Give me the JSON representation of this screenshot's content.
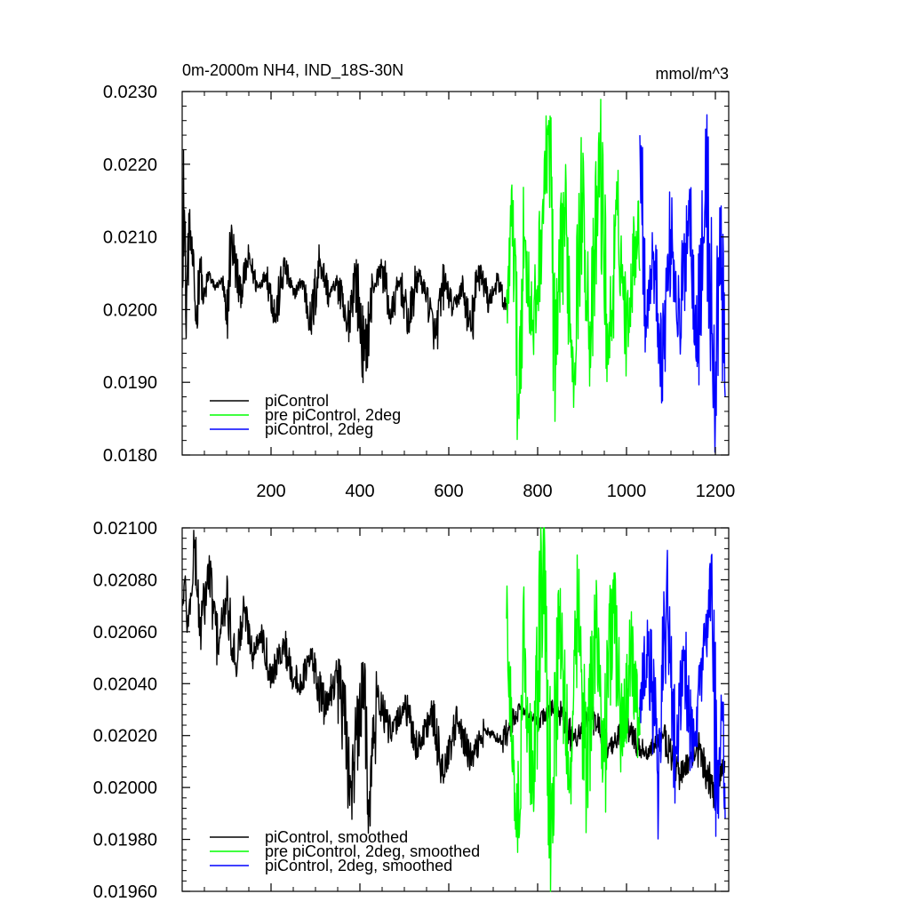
{
  "chart_data": [
    {
      "type": "line",
      "title": "0m-2000m NH4, IND_18S-30N",
      "units": "mmol/m^3",
      "xlabel": "",
      "ylabel": "",
      "xlim": [
        0,
        1230
      ],
      "ylim": [
        0.018,
        0.023
      ],
      "xticks": [
        200,
        400,
        600,
        800,
        1000,
        1200
      ],
      "xtick_labels": [
        "200",
        "400",
        "600",
        "800",
        "1000",
        "1200"
      ],
      "yticks": [
        0.018,
        0.019,
        0.02,
        0.021,
        0.022,
        0.023
      ],
      "ytick_labels": [
        "0.0180",
        "0.0190",
        "0.0200",
        "0.0210",
        "0.0220",
        "0.0230"
      ],
      "legend_position": "bottom-left",
      "series": [
        {
          "name": "piControl",
          "color": "#000000",
          "x_range": [
            1,
            730
          ],
          "points": [
            [
              1,
              0.0203
            ],
            [
              3,
              0.0222
            ],
            [
              8,
              0.0199
            ],
            [
              16,
              0.0212
            ],
            [
              24,
              0.0206
            ],
            [
              32,
              0.0198
            ],
            [
              40,
              0.0207
            ],
            [
              48,
              0.0201
            ],
            [
              60,
              0.0205
            ],
            [
              72,
              0.0203
            ],
            [
              90,
              0.0204
            ],
            [
              100,
              0.0198
            ],
            [
              110,
              0.021
            ],
            [
              130,
              0.0202
            ],
            [
              150,
              0.0207
            ],
            [
              170,
              0.0203
            ],
            [
              190,
              0.0205
            ],
            [
              210,
              0.0199
            ],
            [
              230,
              0.0206
            ],
            [
              250,
              0.0202
            ],
            [
              270,
              0.0204
            ],
            [
              290,
              0.0198
            ],
            [
              310,
              0.0207
            ],
            [
              330,
              0.0202
            ],
            [
              350,
              0.0204
            ],
            [
              370,
              0.0197
            ],
            [
              390,
              0.0205
            ],
            [
              410,
              0.0193
            ],
            [
              430,
              0.0203
            ],
            [
              450,
              0.0206
            ],
            [
              470,
              0.0199
            ],
            [
              490,
              0.0204
            ],
            [
              510,
              0.0198
            ],
            [
              530,
              0.0205
            ],
            [
              550,
              0.0202
            ],
            [
              570,
              0.0196
            ],
            [
              590,
              0.0204
            ],
            [
              610,
              0.02
            ],
            [
              630,
              0.0203
            ],
            [
              650,
              0.0197
            ],
            [
              670,
              0.0206
            ],
            [
              690,
              0.0201
            ],
            [
              710,
              0.0204
            ],
            [
              728,
              0.02
            ]
          ]
        },
        {
          "name": "pre piControl, 2deg",
          "color": "#00ff00",
          "x_range": [
            730,
            1030
          ],
          "points": [
            [
              730,
              0.0201
            ],
            [
              745,
              0.0215
            ],
            [
              755,
              0.0187
            ],
            [
              770,
              0.021
            ],
            [
              790,
              0.0196
            ],
            [
              810,
              0.0212
            ],
            [
              825,
              0.0226
            ],
            [
              840,
              0.0191
            ],
            [
              860,
              0.0214
            ],
            [
              880,
              0.0193
            ],
            [
              900,
              0.0216
            ],
            [
              920,
              0.0195
            ],
            [
              940,
              0.0221
            ],
            [
              960,
              0.0194
            ],
            [
              980,
              0.0213
            ],
            [
              1000,
              0.0197
            ],
            [
              1020,
              0.021
            ]
          ]
        },
        {
          "name": "piControl, 2deg",
          "color": "#0000ff",
          "x_range": [
            1030,
            1222
          ],
          "points": [
            [
              1030,
              0.0224
            ],
            [
              1045,
              0.0199
            ],
            [
              1060,
              0.0208
            ],
            [
              1080,
              0.0193
            ],
            [
              1100,
              0.0211
            ],
            [
              1120,
              0.0197
            ],
            [
              1140,
              0.0215
            ],
            [
              1160,
              0.0196
            ],
            [
              1180,
              0.0218
            ],
            [
              1200,
              0.0185
            ],
            [
              1210,
              0.0214
            ],
            [
              1222,
              0.0188
            ]
          ]
        }
      ]
    },
    {
      "type": "line",
      "title": "",
      "xlabel": "",
      "ylabel": "",
      "xlim": [
        0,
        1230
      ],
      "ylim": [
        0.0196,
        0.021
      ],
      "yticks": [
        0.0196,
        0.0198,
        0.02,
        0.0202,
        0.0204,
        0.0206,
        0.0208,
        0.021
      ],
      "ytick_labels": [
        "0.01960",
        "0.01980",
        "0.02000",
        "0.02020",
        "0.02040",
        "0.02060",
        "0.02080",
        "0.02100"
      ],
      "legend_position": "bottom-left",
      "series": [
        {
          "name": "piControl, smoothed",
          "color": "#000000",
          "x_range": [
            1,
            1222
          ],
          "points": [
            [
              1,
              0.0207
            ],
            [
              6,
              0.0208
            ],
            [
              12,
              0.02062
            ],
            [
              20,
              0.02074
            ],
            [
              28,
              0.02095
            ],
            [
              40,
              0.0206
            ],
            [
              60,
              0.02083
            ],
            [
              80,
              0.02055
            ],
            [
              100,
              0.02072
            ],
            [
              120,
              0.02048
            ],
            [
              140,
              0.02068
            ],
            [
              160,
              0.02052
            ],
            [
              180,
              0.0206
            ],
            [
              200,
              0.02043
            ],
            [
              230,
              0.02055
            ],
            [
              260,
              0.02038
            ],
            [
              290,
              0.0205
            ],
            [
              320,
              0.0203
            ],
            [
              350,
              0.02045
            ],
            [
              380,
              0.02
            ],
            [
              410,
              0.0204
            ],
            [
              420,
              0.01995
            ],
            [
              440,
              0.02035
            ],
            [
              470,
              0.0202
            ],
            [
              500,
              0.02032
            ],
            [
              530,
              0.02015
            ],
            [
              560,
              0.02028
            ],
            [
              590,
              0.02005
            ],
            [
              620,
              0.02025
            ],
            [
              650,
              0.0201
            ],
            [
              680,
              0.02022
            ],
            [
              720,
              0.02018
            ],
            [
              760,
              0.0203
            ],
            [
              800,
              0.02025
            ],
            [
              840,
              0.02032
            ],
            [
              880,
              0.02018
            ],
            [
              920,
              0.02028
            ],
            [
              960,
              0.02015
            ],
            [
              1000,
              0.02024
            ],
            [
              1040,
              0.02012
            ],
            [
              1080,
              0.0202
            ],
            [
              1120,
              0.02005
            ],
            [
              1160,
              0.02015
            ],
            [
              1200,
              0.01998
            ],
            [
              1222,
              0.0201
            ]
          ]
        },
        {
          "name": "pre piControl, 2deg, smoothed",
          "color": "#00ff00",
          "x_range": [
            730,
            1030
          ],
          "points": [
            [
              730,
              0.02065
            ],
            [
              745,
              0.0202
            ],
            [
              755,
              0.01975
            ],
            [
              770,
              0.0205
            ],
            [
              790,
              0.02
            ],
            [
              812,
              0.02087
            ],
            [
              830,
              0.0198
            ],
            [
              850,
              0.0206
            ],
            [
              870,
              0.02005
            ],
            [
              890,
              0.0207
            ],
            [
              910,
              0.02002
            ],
            [
              930,
              0.02068
            ],
            [
              950,
              0.0201
            ],
            [
              970,
              0.0208
            ],
            [
              990,
              0.02015
            ],
            [
              1010,
              0.02055
            ],
            [
              1028,
              0.0202
            ]
          ]
        },
        {
          "name": "piControl, 2deg, smoothed",
          "color": "#0000ff",
          "x_range": [
            1030,
            1222
          ],
          "points": [
            [
              1030,
              0.0203
            ],
            [
              1050,
              0.0206
            ],
            [
              1070,
              0.02005
            ],
            [
              1090,
              0.02075
            ],
            [
              1110,
              0.02015
            ],
            [
              1130,
              0.0205
            ],
            [
              1150,
              0.0201
            ],
            [
              1170,
              0.02045
            ],
            [
              1190,
              0.02078
            ],
            [
              1205,
              0.0199
            ],
            [
              1215,
              0.02032
            ],
            [
              1222,
              0.01988
            ]
          ]
        }
      ]
    }
  ]
}
